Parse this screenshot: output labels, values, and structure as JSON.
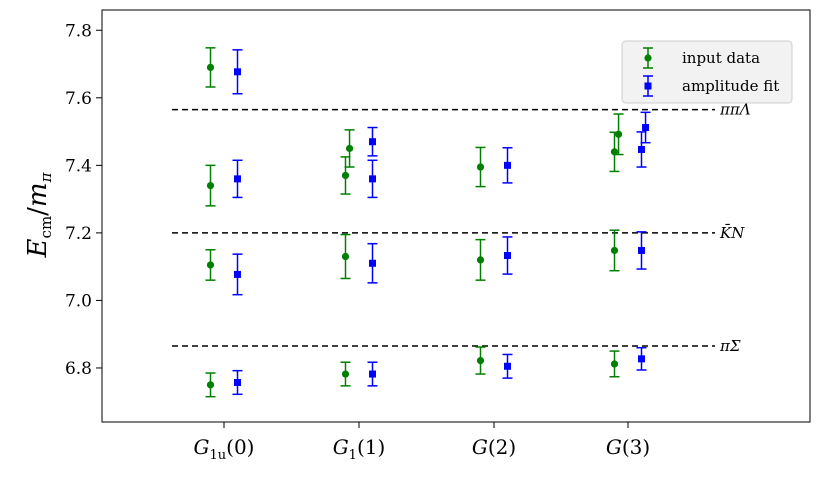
{
  "chart_data": {
    "type": "scatter",
    "title": "",
    "xlabel": "",
    "ylabel": "Ecm/mπ",
    "ylim": [
      6.64,
      7.86
    ],
    "yticks": [
      "6.8",
      "7.0",
      "7.2",
      "7.4",
      "7.6",
      "7.8"
    ],
    "categories": [
      "G1u(0)",
      "G1(1)",
      "G(2)",
      "G(3)"
    ],
    "category_display": [
      {
        "main": "G",
        "sub": "1u",
        "arg": "(0)"
      },
      {
        "main": "G",
        "sub": "1",
        "arg": "(1)"
      },
      {
        "main": "G",
        "sub": "",
        "arg": "(2)"
      },
      {
        "main": "G",
        "sub": "",
        "arg": "(3)"
      }
    ],
    "legend_position": "top-right",
    "grid": false,
    "thresholds": [
      {
        "label": "ππΛ",
        "value": 7.565
      },
      {
        "label": "K̄N",
        "value": 7.2
      },
      {
        "label": "πΣ",
        "value": 6.865
      }
    ],
    "series": [
      {
        "name": "input data",
        "color": "#008000",
        "marker": "circle",
        "points": [
          {
            "cat": 0,
            "offset": -0.1,
            "y": 6.75,
            "err": 0.035
          },
          {
            "cat": 0,
            "offset": -0.1,
            "y": 7.105,
            "err": 0.045
          },
          {
            "cat": 0,
            "offset": -0.1,
            "y": 7.34,
            "err": 0.06
          },
          {
            "cat": 0,
            "offset": -0.1,
            "y": 7.69,
            "err": 0.058
          },
          {
            "cat": 1,
            "offset": -0.1,
            "y": 6.782,
            "err": 0.035
          },
          {
            "cat": 1,
            "offset": -0.1,
            "y": 7.13,
            "err": 0.065
          },
          {
            "cat": 1,
            "offset": -0.1,
            "y": 7.37,
            "err": 0.055
          },
          {
            "cat": 1,
            "offset": -0.07,
            "y": 7.45,
            "err": 0.055
          },
          {
            "cat": 2,
            "offset": -0.1,
            "y": 6.822,
            "err": 0.04
          },
          {
            "cat": 2,
            "offset": -0.1,
            "y": 7.12,
            "err": 0.06
          },
          {
            "cat": 2,
            "offset": -0.1,
            "y": 7.395,
            "err": 0.058
          },
          {
            "cat": 3,
            "offset": -0.1,
            "y": 6.812,
            "err": 0.038
          },
          {
            "cat": 3,
            "offset": -0.1,
            "y": 7.148,
            "err": 0.06
          },
          {
            "cat": 3,
            "offset": -0.1,
            "y": 7.44,
            "err": 0.058
          },
          {
            "cat": 3,
            "offset": -0.07,
            "y": 7.492,
            "err": 0.06
          }
        ]
      },
      {
        "name": "amplitude fit",
        "color": "#0000ff",
        "marker": "square",
        "points": [
          {
            "cat": 0,
            "offset": 0.1,
            "y": 6.757,
            "err": 0.035
          },
          {
            "cat": 0,
            "offset": 0.1,
            "y": 7.077,
            "err": 0.06
          },
          {
            "cat": 0,
            "offset": 0.1,
            "y": 7.36,
            "err": 0.055
          },
          {
            "cat": 0,
            "offset": 0.1,
            "y": 7.677,
            "err": 0.065
          },
          {
            "cat": 1,
            "offset": 0.1,
            "y": 6.782,
            "err": 0.035
          },
          {
            "cat": 1,
            "offset": 0.1,
            "y": 7.11,
            "err": 0.058
          },
          {
            "cat": 1,
            "offset": 0.1,
            "y": 7.36,
            "err": 0.055
          },
          {
            "cat": 1,
            "offset": 0.1,
            "y": 7.47,
            "err": 0.042
          },
          {
            "cat": 2,
            "offset": 0.1,
            "y": 6.805,
            "err": 0.035
          },
          {
            "cat": 2,
            "offset": 0.1,
            "y": 7.133,
            "err": 0.055
          },
          {
            "cat": 2,
            "offset": 0.1,
            "y": 7.4,
            "err": 0.052
          },
          {
            "cat": 3,
            "offset": 0.1,
            "y": 6.827,
            "err": 0.033
          },
          {
            "cat": 3,
            "offset": 0.1,
            "y": 7.148,
            "err": 0.055
          },
          {
            "cat": 3,
            "offset": 0.1,
            "y": 7.447,
            "err": 0.052
          },
          {
            "cat": 3,
            "offset": 0.13,
            "y": 7.512,
            "err": 0.045
          }
        ]
      }
    ]
  }
}
